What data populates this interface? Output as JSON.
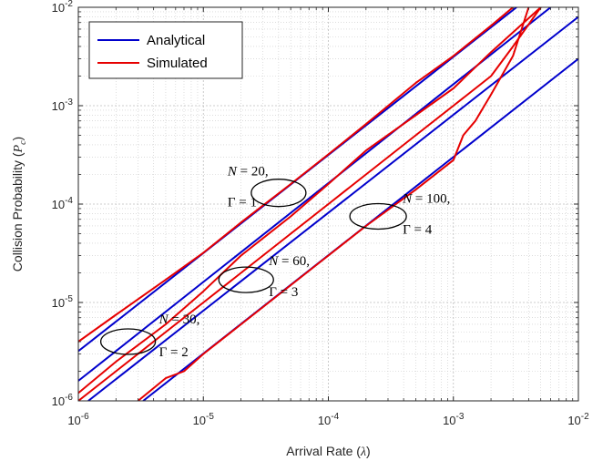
{
  "chart_data": {
    "type": "line",
    "xscale": "log",
    "yscale": "log",
    "xlim": [
      1e-06,
      0.01
    ],
    "ylim": [
      1e-06,
      0.01
    ],
    "grid": true,
    "minor_grid": true,
    "legend_position": "top-left",
    "xlabel": "Arrival Rate (λ)",
    "ylabel": "Collision Probability (Pc)",
    "xlabel_parts": {
      "text": "Arrival Rate (",
      "symbol": "λ",
      "close": ")"
    },
    "ylabel_parts": {
      "text": "Collision Probability (",
      "symbol": "P",
      "sub": "c",
      "close": ")"
    },
    "x_ticks": [
      {
        "value": 1e-06,
        "base": "10",
        "exp": "-6"
      },
      {
        "value": 1e-05,
        "base": "10",
        "exp": "-5"
      },
      {
        "value": 0.0001,
        "base": "10",
        "exp": "-4"
      },
      {
        "value": 0.001,
        "base": "10",
        "exp": "-3"
      },
      {
        "value": 0.01,
        "base": "10",
        "exp": "-2"
      }
    ],
    "y_ticks": [
      {
        "value": 1e-06,
        "base": "10",
        "exp": "-6"
      },
      {
        "value": 1e-05,
        "base": "10",
        "exp": "-5"
      },
      {
        "value": 0.0001,
        "base": "10",
        "exp": "-4"
      },
      {
        "value": 0.001,
        "base": "10",
        "exp": "-3"
      },
      {
        "value": 0.01,
        "base": "10",
        "exp": "-2"
      }
    ],
    "legend": [
      {
        "label": "Analytical",
        "color": "#0000cc"
      },
      {
        "label": "Simulated",
        "color": "#e60000"
      }
    ],
    "series": [
      {
        "group": "N = 20, Γ = 1",
        "kind": "Analytical",
        "color": "#0000cc",
        "x": [
          1e-06,
          0.0032
        ],
        "y": [
          3.2e-06,
          0.01
        ]
      },
      {
        "group": "N = 20, Γ = 1",
        "kind": "Simulated",
        "color": "#e60000",
        "x": [
          1e-06,
          2e-06,
          5e-06,
          1e-05,
          2e-05,
          5e-05,
          0.0001,
          0.0002,
          0.0005,
          0.001,
          0.002,
          0.003
        ],
        "y": [
          4e-06,
          7.5e-06,
          1.7e-05,
          3.2e-05,
          6.5e-05,
          0.00016,
          0.00032,
          0.00065,
          0.0017,
          0.0032,
          0.0065,
          0.01
        ]
      },
      {
        "group": "N = 30, Γ = 2",
        "kind": "Analytical",
        "color": "#0000cc",
        "x": [
          1e-06,
          0.006
        ],
        "y": [
          1.6e-06,
          0.01
        ]
      },
      {
        "group": "N = 30, Γ = 2",
        "kind": "Simulated",
        "color": "#e60000",
        "x": [
          1e-06,
          2e-06,
          5e-06,
          1e-05,
          2e-05,
          5e-05,
          0.0001,
          0.0002,
          0.0005,
          0.001,
          0.002,
          0.005
        ],
        "y": [
          1.2e-06,
          2.5e-06,
          6e-06,
          1.3e-05,
          3e-05,
          7.5e-05,
          0.00016,
          0.00035,
          0.0008,
          0.0015,
          0.0035,
          0.01
        ]
      },
      {
        "group": "N = 60, Γ = 3",
        "kind": "Analytical",
        "color": "#0000cc",
        "x": [
          1.2e-06,
          0.01
        ],
        "y": [
          1e-06,
          0.008
        ]
      },
      {
        "group": "N = 60, Γ = 3",
        "kind": "Simulated",
        "color": "#e60000",
        "x": [
          1e-06,
          2e-06,
          5e-06,
          7e-06,
          1e-05,
          2e-05,
          5e-05,
          0.0001,
          0.0002,
          0.0005,
          0.001,
          0.002,
          0.003,
          0.005
        ],
        "y": [
          1e-06,
          2e-06,
          5e-06,
          7e-06,
          1e-05,
          2e-05,
          5e-05,
          0.0001,
          0.0002,
          0.0005,
          0.001,
          0.002,
          0.004,
          0.01
        ]
      },
      {
        "group": "N = 100, Γ = 4",
        "kind": "Analytical",
        "color": "#0000cc",
        "x": [
          3.3e-06,
          0.01
        ],
        "y": [
          1e-06,
          0.003
        ]
      },
      {
        "group": "N = 100, Γ = 4",
        "kind": "Simulated",
        "color": "#e60000",
        "x": [
          3e-06,
          5e-06,
          7e-06,
          1e-05,
          2e-05,
          5e-05,
          0.0001,
          0.0002,
          0.0005,
          0.001,
          0.0012,
          0.0015,
          0.002,
          0.003,
          0.004
        ],
        "y": [
          1e-06,
          1.7e-06,
          2e-06,
          3e-06,
          6e-06,
          1.5e-05,
          3e-05,
          6e-05,
          0.00014,
          0.00028,
          0.0005,
          0.0007,
          0.0013,
          0.0032,
          0.01
        ]
      }
    ],
    "annotations": [
      {
        "line1": {
          "var": "N",
          "eq": " = 20,"
        },
        "line2": "Γ = 1",
        "ellipse_x": 4e-05,
        "ellipse_y": 0.00013
      },
      {
        "line1": {
          "var": "N",
          "eq": " = 30,"
        },
        "line2": "Γ = 2",
        "ellipse_x": 2.5e-06,
        "ellipse_y": 4e-06
      },
      {
        "line1": {
          "var": "N",
          "eq": " = 60,"
        },
        "line2": "Γ = 3",
        "ellipse_x": 2.2e-05,
        "ellipse_y": 1.7e-05
      },
      {
        "line1": {
          "var": "N",
          "eq": " = 100,"
        },
        "line2": "Γ = 4",
        "ellipse_x": 0.00025,
        "ellipse_y": 7.5e-05
      }
    ]
  }
}
